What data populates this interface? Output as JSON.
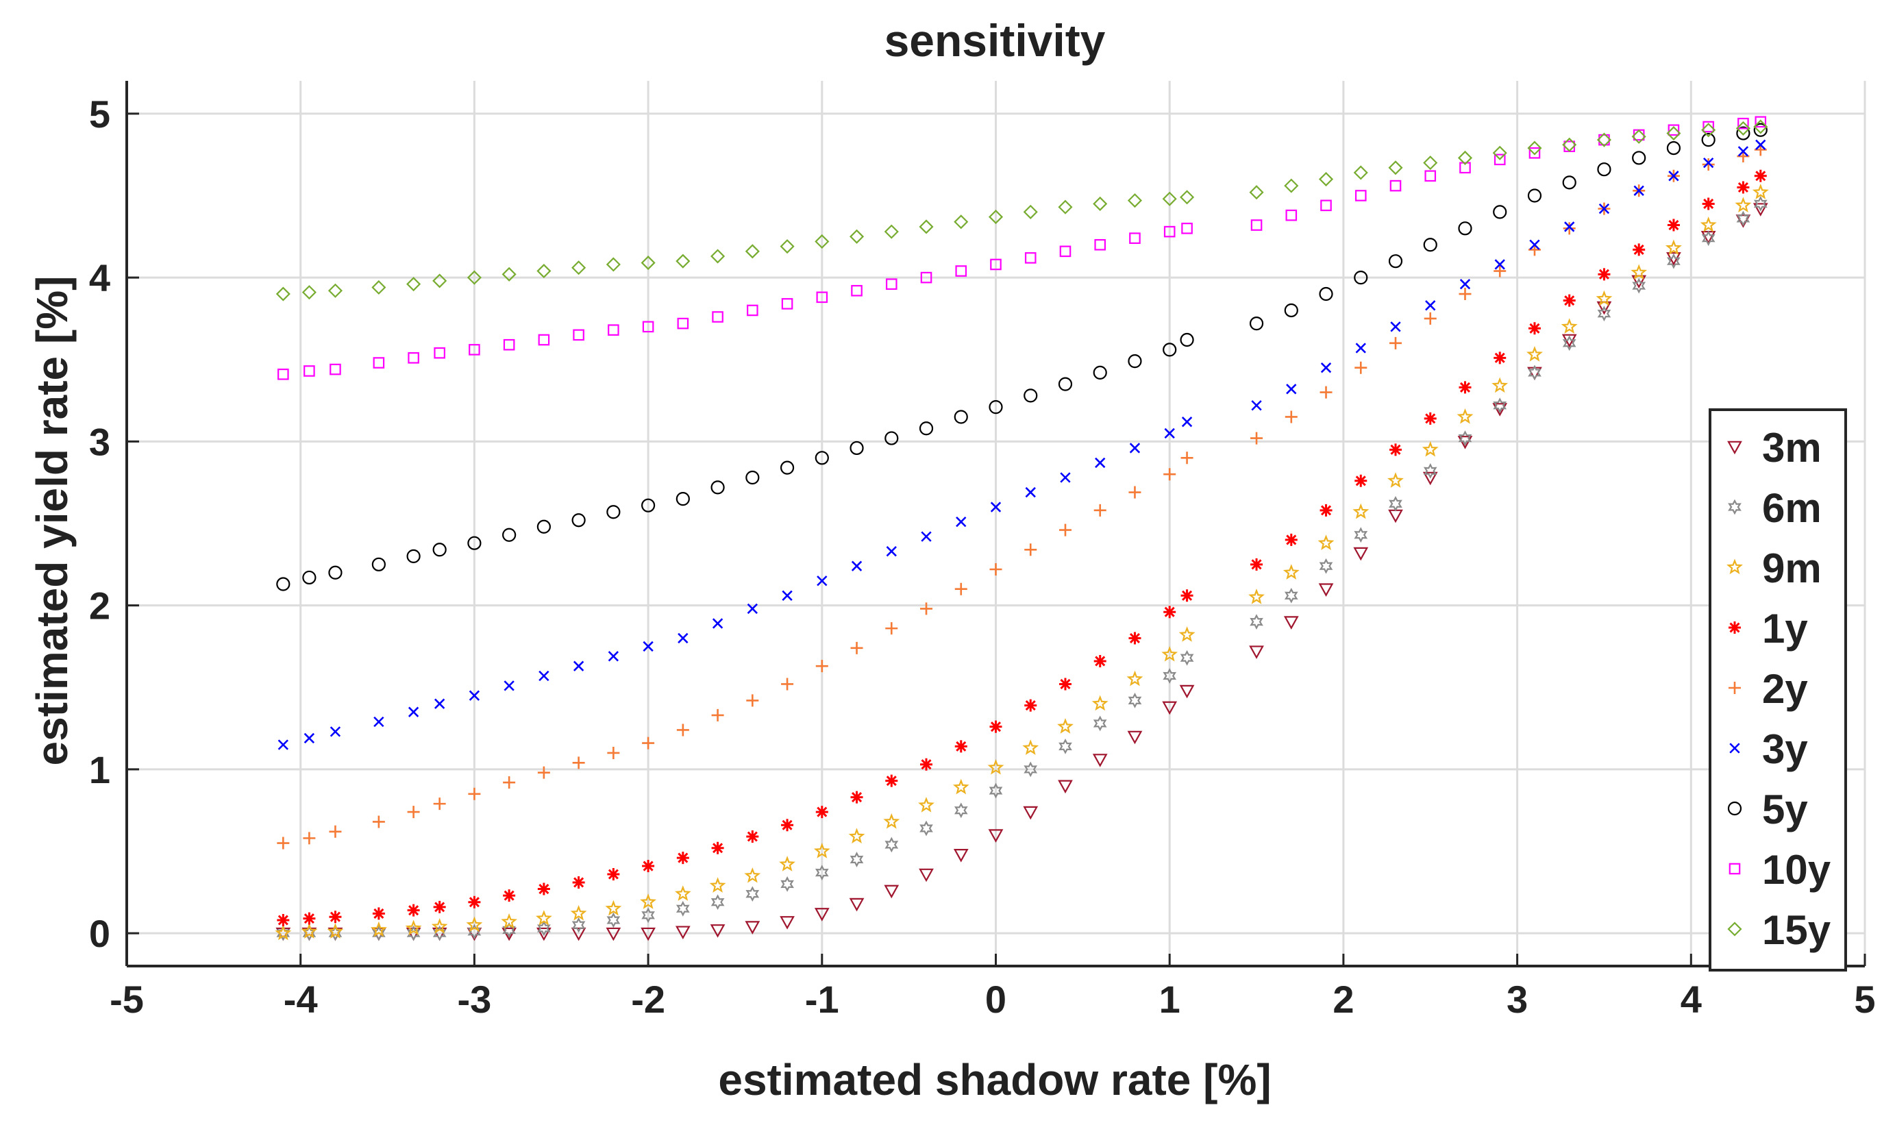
{
  "chart_data": {
    "type": "scatter",
    "title": "sensitivity",
    "xlabel": "estimated shadow rate [%]",
    "ylabel": "estimated yield rate [%]",
    "xlim": [
      -5,
      5
    ],
    "ylim": [
      -0.2,
      5.2
    ],
    "xticks": [
      -5,
      -4,
      -3,
      -2,
      -1,
      0,
      1,
      2,
      3,
      4,
      5
    ],
    "yticks": [
      0,
      1,
      2,
      3,
      4,
      5
    ],
    "xtick_labels": [
      "-5",
      "-4",
      "-3",
      "-2",
      "-1",
      "0",
      "1",
      "2",
      "3",
      "4",
      "5"
    ],
    "ytick_labels": [
      "0",
      "1",
      "2",
      "3",
      "4",
      "5"
    ],
    "grid": true,
    "legend_position": "lower-right",
    "x": [
      -4.1,
      -3.95,
      -3.8,
      -3.55,
      -3.35,
      -3.2,
      -3.0,
      -2.8,
      -2.6,
      -2.4,
      -2.2,
      -2.0,
      -1.8,
      -1.6,
      -1.4,
      -1.2,
      -1.0,
      -0.8,
      -0.6,
      -0.4,
      -0.2,
      0.0,
      0.2,
      0.4,
      0.6,
      0.8,
      1.0,
      1.1,
      1.5,
      1.7,
      1.9,
      2.1,
      2.3,
      2.5,
      2.7,
      2.9,
      3.1,
      3.3,
      3.5,
      3.7,
      3.9,
      4.1,
      4.3,
      4.4
    ],
    "series": [
      {
        "name": "3m",
        "color": "#a0162e",
        "marker": "triangle-down",
        "values": [
          0.0,
          0.0,
          0.0,
          0.0,
          0.0,
          0.0,
          0.0,
          0.0,
          0.0,
          0.0,
          0.0,
          0.0,
          0.01,
          0.02,
          0.04,
          0.07,
          0.12,
          0.18,
          0.26,
          0.36,
          0.48,
          0.6,
          0.74,
          0.9,
          1.06,
          1.2,
          1.38,
          1.48,
          1.72,
          1.9,
          2.1,
          2.32,
          2.55,
          2.78,
          3.0,
          3.2,
          3.42,
          3.62,
          3.82,
          3.98,
          4.12,
          4.25,
          4.35,
          4.42
        ]
      },
      {
        "name": "6m",
        "color": "#8a8a8a",
        "marker": "hexagram",
        "values": [
          0.0,
          0.0,
          0.0,
          0.0,
          0.0,
          0.0,
          0.01,
          0.02,
          0.03,
          0.05,
          0.08,
          0.11,
          0.15,
          0.19,
          0.24,
          0.3,
          0.37,
          0.45,
          0.54,
          0.64,
          0.75,
          0.87,
          1.0,
          1.14,
          1.28,
          1.42,
          1.57,
          1.68,
          1.9,
          2.06,
          2.24,
          2.43,
          2.62,
          2.82,
          3.02,
          3.22,
          3.42,
          3.6,
          3.78,
          3.95,
          4.1,
          4.24,
          4.36,
          4.45
        ]
      },
      {
        "name": "9m",
        "color": "#edb120",
        "marker": "pentagram",
        "values": [
          0.0,
          0.01,
          0.01,
          0.02,
          0.03,
          0.04,
          0.05,
          0.07,
          0.09,
          0.12,
          0.15,
          0.19,
          0.24,
          0.29,
          0.35,
          0.42,
          0.5,
          0.59,
          0.68,
          0.78,
          0.89,
          1.01,
          1.13,
          1.26,
          1.4,
          1.55,
          1.7,
          1.82,
          2.05,
          2.2,
          2.38,
          2.57,
          2.76,
          2.95,
          3.15,
          3.34,
          3.53,
          3.7,
          3.87,
          4.03,
          4.18,
          4.32,
          4.44,
          4.52
        ]
      },
      {
        "name": "1y",
        "color": "#ff0000",
        "marker": "asterisk",
        "values": [
          0.08,
          0.09,
          0.1,
          0.12,
          0.14,
          0.16,
          0.19,
          0.23,
          0.27,
          0.31,
          0.36,
          0.41,
          0.46,
          0.52,
          0.59,
          0.66,
          0.74,
          0.83,
          0.93,
          1.03,
          1.14,
          1.26,
          1.39,
          1.52,
          1.66,
          1.8,
          1.96,
          2.06,
          2.25,
          2.4,
          2.58,
          2.76,
          2.95,
          3.14,
          3.33,
          3.51,
          3.69,
          3.86,
          4.02,
          4.17,
          4.32,
          4.45,
          4.55,
          4.62
        ]
      },
      {
        "name": "2y",
        "color": "#f47a35",
        "marker": "plus",
        "values": [
          0.55,
          0.58,
          0.62,
          0.68,
          0.74,
          0.79,
          0.85,
          0.92,
          0.98,
          1.04,
          1.1,
          1.16,
          1.24,
          1.33,
          1.42,
          1.52,
          1.63,
          1.74,
          1.86,
          1.98,
          2.1,
          2.22,
          2.34,
          2.46,
          2.58,
          2.69,
          2.8,
          2.9,
          3.02,
          3.15,
          3.3,
          3.45,
          3.6,
          3.75,
          3.9,
          4.04,
          4.17,
          4.3,
          4.42,
          4.53,
          4.62,
          4.69,
          4.74,
          4.78
        ]
      },
      {
        "name": "3y",
        "color": "#0000ff",
        "marker": "x",
        "values": [
          1.15,
          1.19,
          1.23,
          1.29,
          1.35,
          1.4,
          1.45,
          1.51,
          1.57,
          1.63,
          1.69,
          1.75,
          1.8,
          1.89,
          1.98,
          2.06,
          2.15,
          2.24,
          2.33,
          2.42,
          2.51,
          2.6,
          2.69,
          2.78,
          2.87,
          2.96,
          3.05,
          3.12,
          3.22,
          3.32,
          3.45,
          3.57,
          3.7,
          3.83,
          3.96,
          4.08,
          4.2,
          4.31,
          4.42,
          4.53,
          4.62,
          4.7,
          4.77,
          4.81
        ]
      },
      {
        "name": "5y",
        "color": "#000000",
        "marker": "circle",
        "values": [
          2.13,
          2.17,
          2.2,
          2.25,
          2.3,
          2.34,
          2.38,
          2.43,
          2.48,
          2.52,
          2.57,
          2.61,
          2.65,
          2.72,
          2.78,
          2.84,
          2.9,
          2.96,
          3.02,
          3.08,
          3.15,
          3.21,
          3.28,
          3.35,
          3.42,
          3.49,
          3.56,
          3.62,
          3.72,
          3.8,
          3.9,
          4.0,
          4.1,
          4.2,
          4.3,
          4.4,
          4.5,
          4.58,
          4.66,
          4.73,
          4.79,
          4.84,
          4.88,
          4.9
        ]
      },
      {
        "name": "10y",
        "color": "#ff00ff",
        "marker": "square",
        "values": [
          3.41,
          3.43,
          3.44,
          3.48,
          3.51,
          3.54,
          3.56,
          3.59,
          3.62,
          3.65,
          3.68,
          3.7,
          3.72,
          3.76,
          3.8,
          3.84,
          3.88,
          3.92,
          3.96,
          4.0,
          4.04,
          4.08,
          4.12,
          4.16,
          4.2,
          4.24,
          4.28,
          4.3,
          4.32,
          4.38,
          4.44,
          4.5,
          4.56,
          4.62,
          4.67,
          4.72,
          4.76,
          4.8,
          4.84,
          4.87,
          4.9,
          4.92,
          4.94,
          4.95
        ]
      },
      {
        "name": "15y",
        "color": "#77ac30",
        "marker": "diamond",
        "values": [
          3.9,
          3.91,
          3.92,
          3.94,
          3.96,
          3.98,
          4.0,
          4.02,
          4.04,
          4.06,
          4.08,
          4.09,
          4.1,
          4.13,
          4.16,
          4.19,
          4.22,
          4.25,
          4.28,
          4.31,
          4.34,
          4.37,
          4.4,
          4.43,
          4.45,
          4.47,
          4.48,
          4.49,
          4.52,
          4.56,
          4.6,
          4.64,
          4.67,
          4.7,
          4.73,
          4.76,
          4.79,
          4.81,
          4.84,
          4.86,
          4.88,
          4.9,
          4.91,
          4.92
        ]
      }
    ]
  }
}
